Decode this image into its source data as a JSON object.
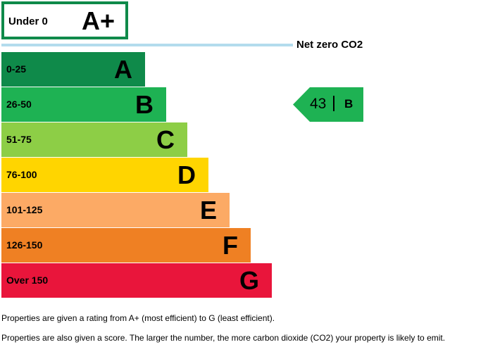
{
  "chart_data": {
    "type": "bar",
    "top_band": {
      "range": "Under 0",
      "letter": "A+",
      "color": "#0f8a4a"
    },
    "net_zero": {
      "label": "Net zero CO2",
      "color": "#b3dced"
    },
    "bands": [
      {
        "range": "0-25",
        "letter": "A",
        "color": "#0f8a4a"
      },
      {
        "range": "26-50",
        "letter": "B",
        "color": "#1eb253"
      },
      {
        "range": "51-75",
        "letter": "C",
        "color": "#8dce46"
      },
      {
        "range": "76-100",
        "letter": "D",
        "color": "#ffd500"
      },
      {
        "range": "101-125",
        "letter": "E",
        "color": "#fcaa65"
      },
      {
        "range": "126-150",
        "letter": "F",
        "color": "#ef8023"
      },
      {
        "range": "Over 150",
        "letter": "G",
        "color": "#e9153b"
      }
    ],
    "current": {
      "score": "43",
      "letter": "B",
      "color": "#1eb253"
    }
  },
  "notes": {
    "line1": "Properties are given a rating from A+ (most efficient) to G (least efficient).",
    "line2": "Properties are also given a score. The larger the number, the more carbon dioxide (CO2) your property is likely to emit."
  }
}
